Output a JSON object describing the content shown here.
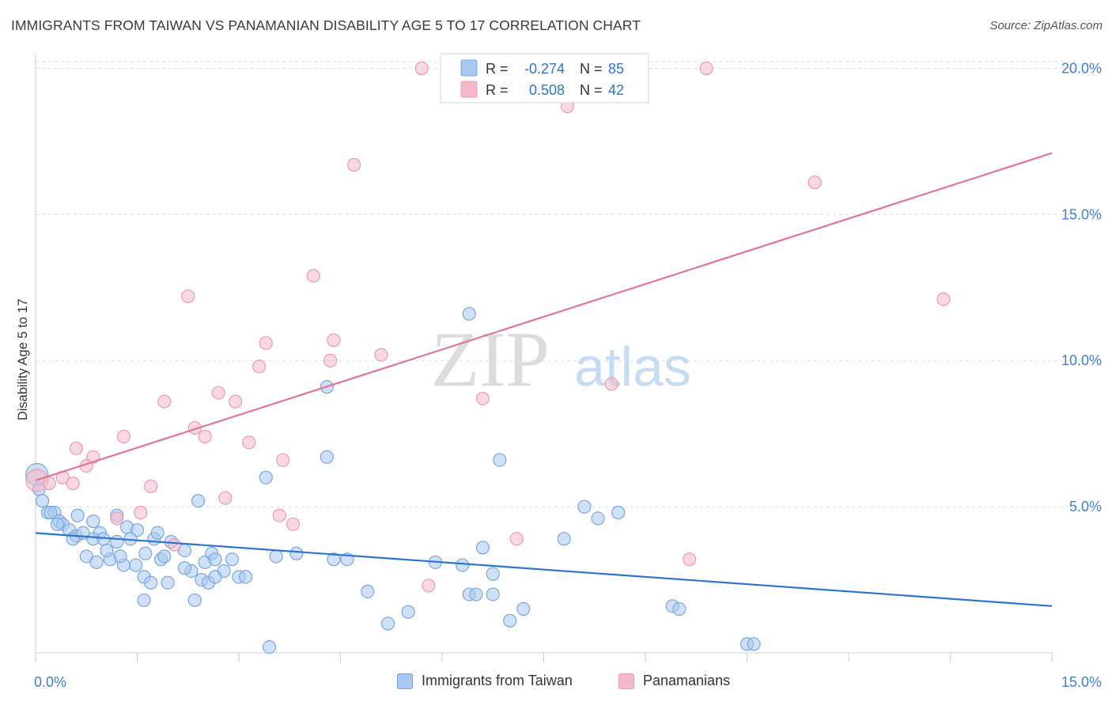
{
  "title": "IMMIGRANTS FROM TAIWAN VS PANAMANIAN DISABILITY AGE 5 TO 17 CORRELATION CHART",
  "source": "Source: ZipAtlas.com",
  "watermark": {
    "zip": "ZIP",
    "atlas": "atlas"
  },
  "colors": {
    "blue_fill": "#a9c8f1",
    "blue_stroke": "#7aa6dc",
    "blue_line": "#2e74cf",
    "pink_fill": "#f6b8cb",
    "pink_stroke": "#eb9ab2",
    "pink_line": "#e4739a",
    "axis_label": "#3f7fd0",
    "grid": "#dddddd"
  },
  "legend": {
    "r_label": "R =",
    "n_label": "N =",
    "series": [
      {
        "r": "-0.274",
        "n": "85"
      },
      {
        "r": "0.508",
        "n": "42"
      }
    ]
  },
  "bottom_legend": [
    "Immigrants from Taiwan",
    "Panamanians"
  ],
  "chart_data": {
    "type": "scatter",
    "title": "IMMIGRANTS FROM TAIWAN VS PANAMANIAN DISABILITY AGE 5 TO 17 CORRELATION CHART",
    "xlabel": "",
    "ylabel": "Disability Age 5 to 17",
    "xlim": [
      0,
      15
    ],
    "ylim": [
      0,
      20.5
    ],
    "x_tick_labels": [
      "0.0%",
      "15.0%"
    ],
    "y_ticks": [
      5,
      10,
      15,
      20
    ],
    "y_tick_labels": [
      "5.0%",
      "10.0%",
      "15.0%",
      "20.0%"
    ],
    "grid": true,
    "legend_position": "top-center",
    "series": [
      {
        "name": "Immigrants from Taiwan",
        "color": "#a9c8f1",
        "trend": {
          "x": [
            0,
            15
          ],
          "y": [
            4.1,
            1.6
          ]
        },
        "points": [
          [
            0.02,
            6.1
          ],
          [
            0.05,
            5.6
          ],
          [
            0.1,
            5.2
          ],
          [
            0.18,
            4.8
          ],
          [
            0.28,
            4.8
          ],
          [
            0.22,
            4.8
          ],
          [
            0.35,
            4.5
          ],
          [
            0.4,
            4.4
          ],
          [
            0.32,
            4.4
          ],
          [
            0.5,
            4.2
          ],
          [
            0.6,
            4.0
          ],
          [
            0.55,
            3.9
          ],
          [
            0.7,
            4.1
          ],
          [
            0.85,
            4.5
          ],
          [
            0.95,
            4.1
          ],
          [
            1.2,
            4.7
          ],
          [
            1.35,
            4.3
          ],
          [
            1.5,
            4.2
          ],
          [
            0.85,
            3.9
          ],
          [
            1.0,
            3.9
          ],
          [
            1.2,
            3.8
          ],
          [
            1.4,
            3.9
          ],
          [
            1.62,
            3.4
          ],
          [
            1.75,
            3.9
          ],
          [
            0.62,
            4.7
          ],
          [
            0.75,
            3.3
          ],
          [
            0.9,
            3.1
          ],
          [
            1.1,
            3.2
          ],
          [
            1.3,
            3.0
          ],
          [
            1.05,
            3.5
          ],
          [
            1.25,
            3.3
          ],
          [
            1.85,
            3.2
          ],
          [
            2.0,
            3.8
          ],
          [
            2.2,
            3.5
          ],
          [
            2.3,
            2.8
          ],
          [
            2.5,
            3.1
          ],
          [
            2.6,
            3.4
          ],
          [
            2.65,
            3.2
          ],
          [
            2.78,
            2.8
          ],
          [
            2.9,
            3.2
          ],
          [
            1.48,
            3.0
          ],
          [
            1.6,
            2.6
          ],
          [
            1.95,
            2.4
          ],
          [
            1.7,
            2.4
          ],
          [
            2.45,
            2.5
          ],
          [
            2.55,
            2.4
          ],
          [
            2.65,
            2.6
          ],
          [
            3.0,
            2.6
          ],
          [
            3.1,
            2.6
          ],
          [
            1.6,
            1.8
          ],
          [
            2.35,
            1.8
          ],
          [
            3.4,
            6.0
          ],
          [
            4.3,
            9.1
          ],
          [
            4.3,
            6.7
          ],
          [
            3.55,
            3.3
          ],
          [
            3.85,
            3.4
          ],
          [
            4.4,
            3.2
          ],
          [
            4.6,
            3.2
          ],
          [
            4.9,
            2.1
          ],
          [
            5.2,
            1.0
          ],
          [
            5.5,
            1.4
          ],
          [
            5.9,
            3.1
          ],
          [
            6.3,
            3.0
          ],
          [
            6.4,
            2.0
          ],
          [
            6.5,
            2.0
          ],
          [
            6.75,
            2.0
          ],
          [
            6.75,
            2.7
          ],
          [
            6.6,
            3.6
          ],
          [
            6.85,
            6.6
          ],
          [
            7.0,
            1.1
          ],
          [
            7.2,
            1.5
          ],
          [
            7.8,
            3.9
          ],
          [
            8.1,
            5.0
          ],
          [
            8.3,
            4.6
          ],
          [
            8.6,
            4.8
          ],
          [
            9.4,
            1.6
          ],
          [
            9.5,
            1.5
          ],
          [
            10.5,
            0.3
          ],
          [
            10.6,
            0.3
          ],
          [
            6.4,
            11.6
          ],
          [
            3.45,
            0.2
          ],
          [
            2.4,
            5.2
          ],
          [
            1.8,
            4.1
          ],
          [
            1.9,
            3.3
          ],
          [
            2.2,
            2.9
          ]
        ]
      },
      {
        "name": "Panamanians",
        "color": "#f6b8cb",
        "trend": {
          "x": [
            0,
            15
          ],
          "y": [
            5.9,
            17.1
          ]
        },
        "points": [
          [
            0.02,
            5.9
          ],
          [
            0.2,
            5.8
          ],
          [
            0.4,
            6.0
          ],
          [
            0.55,
            5.8
          ],
          [
            0.6,
            7.0
          ],
          [
            0.75,
            6.4
          ],
          [
            0.85,
            6.7
          ],
          [
            1.3,
            7.4
          ],
          [
            1.2,
            4.6
          ],
          [
            1.55,
            4.8
          ],
          [
            1.7,
            5.7
          ],
          [
            1.9,
            8.6
          ],
          [
            2.05,
            3.7
          ],
          [
            2.25,
            12.2
          ],
          [
            2.35,
            7.7
          ],
          [
            2.5,
            7.4
          ],
          [
            2.7,
            8.9
          ],
          [
            2.8,
            5.3
          ],
          [
            2.95,
            8.6
          ],
          [
            3.15,
            7.2
          ],
          [
            3.3,
            9.8
          ],
          [
            3.4,
            10.6
          ],
          [
            3.6,
            4.7
          ],
          [
            3.65,
            6.6
          ],
          [
            3.8,
            4.4
          ],
          [
            4.1,
            12.9
          ],
          [
            4.35,
            10.0
          ],
          [
            4.4,
            10.7
          ],
          [
            4.7,
            16.7
          ],
          [
            5.1,
            10.2
          ],
          [
            5.7,
            20.0
          ],
          [
            5.8,
            2.3
          ],
          [
            6.1,
            20.0
          ],
          [
            6.6,
            8.7
          ],
          [
            7.1,
            3.9
          ],
          [
            7.6,
            20.0
          ],
          [
            7.85,
            18.7
          ],
          [
            8.5,
            9.2
          ],
          [
            9.65,
            3.2
          ],
          [
            9.9,
            20.0
          ],
          [
            11.5,
            16.1
          ],
          [
            13.4,
            12.1
          ]
        ]
      }
    ]
  }
}
